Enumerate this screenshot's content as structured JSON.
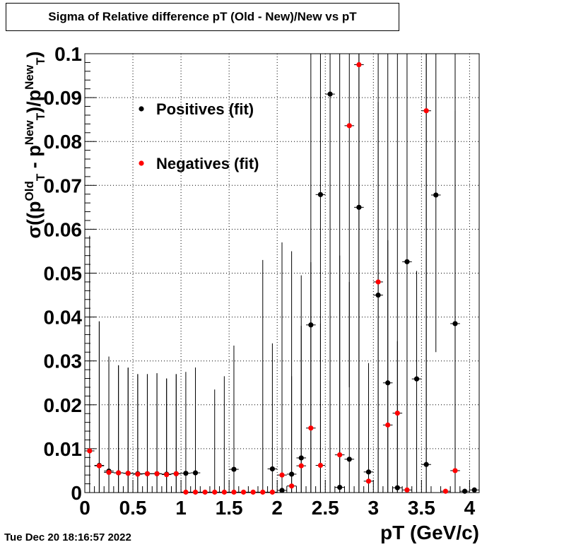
{
  "chart_data": {
    "type": "scatter",
    "title": "Sigma of Relative difference pT (Old - New)/New vs pT",
    "xlabel": "pT (GeV/c)",
    "ylabel": {
      "base": "σ((p",
      "old_sup": "Old",
      "sub1": "T",
      "mid": " - p",
      "new_sup": "New",
      "sub2": "T",
      "slash": ")/p",
      "new_sup2": "New",
      "sub3": "T",
      "close": ")"
    },
    "xlim": [
      0,
      4.1
    ],
    "ylim": [
      0,
      0.1
    ],
    "x_ticks": [
      {
        "value": 0,
        "label": "0"
      },
      {
        "value": 0.5,
        "label": "0.5"
      },
      {
        "value": 1,
        "label": "1"
      },
      {
        "value": 1.5,
        "label": "1.5"
      },
      {
        "value": 2,
        "label": "2"
      },
      {
        "value": 2.5,
        "label": "2.5"
      },
      {
        "value": 3,
        "label": "3"
      },
      {
        "value": 3.5,
        "label": "3.5"
      },
      {
        "value": 4,
        "label": "4"
      }
    ],
    "y_ticks": [
      {
        "value": 0,
        "label": "0"
      },
      {
        "value": 0.01,
        "label": "0.01"
      },
      {
        "value": 0.02,
        "label": "0.02"
      },
      {
        "value": 0.03,
        "label": "0.03"
      },
      {
        "value": 0.04,
        "label": "0.04"
      },
      {
        "value": 0.05,
        "label": "0.05"
      },
      {
        "value": 0.06,
        "label": "0.06"
      },
      {
        "value": 0.07,
        "label": "0.07"
      },
      {
        "value": 0.08,
        "label": "0.08"
      },
      {
        "value": 0.09,
        "label": "0.09"
      },
      {
        "value": 0.1,
        "label": "0.1"
      }
    ],
    "grid": true,
    "legend_position": "top-left",
    "series": [
      {
        "name": "Positives (fit)",
        "color": "#000000",
        "points": [
          {
            "x": 0.15,
            "y": 0.0062,
            "ylo": 0.0,
            "yhi": 0.039
          },
          {
            "x": 0.25,
            "y": 0.0049,
            "ylo": 0.0,
            "yhi": 0.031
          },
          {
            "x": 0.35,
            "y": 0.0045,
            "ylo": 0.0,
            "yhi": 0.029
          },
          {
            "x": 0.45,
            "y": 0.0044,
            "ylo": 0.0,
            "yhi": 0.0284
          },
          {
            "x": 0.55,
            "y": 0.0043,
            "ylo": 0.0,
            "yhi": 0.027
          },
          {
            "x": 0.65,
            "y": 0.0043,
            "ylo": 0.0,
            "yhi": 0.027
          },
          {
            "x": 0.75,
            "y": 0.0043,
            "ylo": 0.0,
            "yhi": 0.0272
          },
          {
            "x": 0.85,
            "y": 0.0042,
            "ylo": 0.0,
            "yhi": 0.026
          },
          {
            "x": 0.95,
            "y": 0.0043,
            "ylo": 0.0,
            "yhi": 0.027
          },
          {
            "x": 1.05,
            "y": 0.0044,
            "ylo": 0.0,
            "yhi": 0.0275
          },
          {
            "x": 1.15,
            "y": 0.0045,
            "ylo": 0.0,
            "yhi": 0.0285
          },
          {
            "x": 1.55,
            "y": 0.0053,
            "ylo": 0.0,
            "yhi": 0.0335
          },
          {
            "x": 1.95,
            "y": 0.0054,
            "ylo": 0.0,
            "yhi": 0.034
          },
          {
            "x": 2.05,
            "y": 0.0005,
            "ylo": 0.0,
            "yhi": 0.057
          },
          {
            "x": 2.15,
            "y": 0.0042,
            "ylo": 0.0,
            "yhi": 0.0265
          },
          {
            "x": 2.25,
            "y": 0.0079,
            "ylo": 0.0,
            "yhi": 0.0495
          },
          {
            "x": 2.35,
            "y": 0.0382,
            "ylo": 0.0,
            "yhi": 0.1
          },
          {
            "x": 2.45,
            "y": 0.0679,
            "ylo": 0.0,
            "yhi": 0.1
          },
          {
            "x": 2.55,
            "y": 0.0908,
            "ylo": 0.0,
            "yhi": 0.1
          },
          {
            "x": 2.65,
            "y": 0.0012,
            "ylo": 0.0,
            "yhi": 0.1
          },
          {
            "x": 2.75,
            "y": 0.0076,
            "ylo": 0.0,
            "yhi": 0.048
          },
          {
            "x": 2.85,
            "y": 0.065,
            "ylo": 0.0,
            "yhi": 0.1
          },
          {
            "x": 2.95,
            "y": 0.0047,
            "ylo": 0.0,
            "yhi": 0.0295
          },
          {
            "x": 3.05,
            "y": 0.045,
            "ylo": 0.0,
            "yhi": 0.1
          },
          {
            "x": 3.15,
            "y": 0.025,
            "ylo": 0.0,
            "yhi": 0.1
          },
          {
            "x": 3.25,
            "y": 0.0011,
            "ylo": 0.0,
            "yhi": 0.1
          },
          {
            "x": 3.35,
            "y": 0.0526,
            "ylo": 0.0,
            "yhi": 0.1
          },
          {
            "x": 3.45,
            "y": 0.0259,
            "ylo": 0.0,
            "yhi": 0.0505
          },
          {
            "x": 3.55,
            "y": 0.0064,
            "ylo": 0.0,
            "yhi": 0.1
          },
          {
            "x": 3.65,
            "y": 0.0678,
            "ylo": 0.032,
            "yhi": 0.1
          },
          {
            "x": 3.85,
            "y": 0.0385,
            "ylo": 0.0,
            "yhi": 0.1
          },
          {
            "x": 3.95,
            "y": 0.0003,
            "ylo": 0.0,
            "yhi": 0.0003
          },
          {
            "x": 4.05,
            "y": 0.0006,
            "ylo": 0.0,
            "yhi": 0.0006
          }
        ]
      },
      {
        "name": "Negatives (fit)",
        "color": "#ff0000",
        "points": [
          {
            "x": 0.05,
            "y": 0.0095,
            "ylo": 0.0,
            "yhi": 0.0585
          },
          {
            "x": 0.15,
            "y": 0.0061,
            "ylo": 0.0,
            "yhi": 0.039
          },
          {
            "x": 0.25,
            "y": 0.0046,
            "ylo": 0.0,
            "yhi": 0.0293
          },
          {
            "x": 0.35,
            "y": 0.0045,
            "ylo": 0.0,
            "yhi": 0.029
          },
          {
            "x": 0.45,
            "y": 0.0044,
            "ylo": 0.0,
            "yhi": 0.0285
          },
          {
            "x": 0.55,
            "y": 0.0042,
            "ylo": 0.0,
            "yhi": 0.027
          },
          {
            "x": 0.65,
            "y": 0.0043,
            "ylo": 0.0,
            "yhi": 0.027
          },
          {
            "x": 0.75,
            "y": 0.0043,
            "ylo": 0.0,
            "yhi": 0.0272
          },
          {
            "x": 0.85,
            "y": 0.0041,
            "ylo": 0.0,
            "yhi": 0.026
          },
          {
            "x": 0.95,
            "y": 0.0043,
            "ylo": 0.0,
            "yhi": 0.027
          },
          {
            "x": 1.05,
            "y": 0.0001,
            "ylo": 0.0,
            "yhi": 0.0001
          },
          {
            "x": 1.15,
            "y": 0.0001,
            "ylo": 0.0,
            "yhi": 0.0001
          },
          {
            "x": 1.25,
            "y": 0.0001,
            "ylo": 0.0,
            "yhi": 0.0001
          },
          {
            "x": 1.35,
            "y": 0.0001,
            "ylo": 0.0,
            "yhi": 0.0235
          },
          {
            "x": 1.45,
            "y": 0.0001,
            "ylo": 0.0,
            "yhi": 0.0265
          },
          {
            "x": 1.55,
            "y": 0.0001,
            "ylo": 0.0,
            "yhi": 0.0001
          },
          {
            "x": 1.65,
            "y": 0.0001,
            "ylo": 0.0,
            "yhi": 0.0001
          },
          {
            "x": 1.75,
            "y": 0.0001,
            "ylo": 0.0,
            "yhi": 0.0001
          },
          {
            "x": 1.85,
            "y": 0.0001,
            "ylo": 0.0,
            "yhi": 0.053
          },
          {
            "x": 1.95,
            "y": 0.0001,
            "ylo": 0.0,
            "yhi": 0.0001
          },
          {
            "x": 2.05,
            "y": 0.004,
            "ylo": 0.0,
            "yhi": 0.0255
          },
          {
            "x": 2.15,
            "y": 0.0015,
            "ylo": 0.0,
            "yhi": 0.055
          },
          {
            "x": 2.25,
            "y": 0.0061,
            "ylo": 0.0,
            "yhi": 0.038
          },
          {
            "x": 2.35,
            "y": 0.0147,
            "ylo": 0.0,
            "yhi": 0.0525
          },
          {
            "x": 2.45,
            "y": 0.0062,
            "ylo": 0.0,
            "yhi": 0.0385
          },
          {
            "x": 2.65,
            "y": 0.0086,
            "ylo": 0.0,
            "yhi": 0.054
          },
          {
            "x": 2.75,
            "y": 0.0836,
            "ylo": 0.024,
            "yhi": 0.1
          },
          {
            "x": 2.85,
            "y": 0.0975,
            "ylo": 0.0,
            "yhi": 0.1
          },
          {
            "x": 2.95,
            "y": 0.0026,
            "ylo": 0.0,
            "yhi": 0.016
          },
          {
            "x": 3.05,
            "y": 0.048,
            "ylo": 0.0,
            "yhi": 0.089
          },
          {
            "x": 3.15,
            "y": 0.0154,
            "ylo": 0.0,
            "yhi": 0.0575
          },
          {
            "x": 3.25,
            "y": 0.0181,
            "ylo": 0.0,
            "yhi": 0.0345
          },
          {
            "x": 3.35,
            "y": 0.0006,
            "ylo": 0.0,
            "yhi": 0.0006
          },
          {
            "x": 3.55,
            "y": 0.087,
            "ylo": 0.0,
            "yhi": 0.1
          },
          {
            "x": 3.75,
            "y": 0.0003,
            "ylo": 0.0,
            "yhi": 0.0003
          },
          {
            "x": 3.85,
            "y": 0.005,
            "ylo": 0.0,
            "yhi": 0.087
          }
        ]
      }
    ]
  },
  "footer": {
    "timestamp": "Tue Dec 20 18:16:57 2022"
  }
}
